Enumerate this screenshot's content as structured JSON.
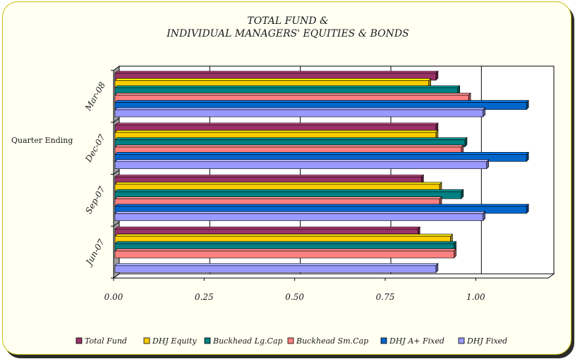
{
  "chart_data": {
    "type": "bar",
    "orientation": "horizontal",
    "title": "TOTAL FUND &",
    "subtitle": "INDIVIDUAL MANAGERS' EQUITIES & BONDS",
    "ylabel": "Quarter Ending",
    "xlabel": "",
    "xlim": [
      0,
      1.2
    ],
    "xticks": [
      "0.00",
      "0.25",
      "0.50",
      "0.75",
      "1.00"
    ],
    "xtick_values": [
      0,
      0.25,
      0.5,
      0.75,
      1.0
    ],
    "grid": "vertical",
    "legend_position": "bottom",
    "categories": [
      "Mar-08",
      "Dec-07",
      "Sep-07",
      "Jun-07"
    ],
    "series": [
      {
        "name": "Total Fund",
        "color": "#993366",
        "values": [
          0.89,
          0.89,
          0.85,
          0.84
        ]
      },
      {
        "name": "DHJ Equity",
        "color": "#ffcc00",
        "values": [
          0.87,
          0.89,
          0.9,
          0.93
        ]
      },
      {
        "name": "Buckhead Lg.Cap",
        "color": "#008080",
        "values": [
          0.95,
          0.97,
          0.96,
          0.94
        ]
      },
      {
        "name": "Buckhead Sm.Cap",
        "color": "#ff8080",
        "values": [
          0.98,
          0.96,
          0.9,
          0.94
        ]
      },
      {
        "name": "DHJ A+ Fixed",
        "color": "#0066cc",
        "values": [
          1.14,
          1.14,
          1.14,
          null
        ]
      },
      {
        "name": "DHJ Fixed",
        "color": "#9999ff",
        "values": [
          1.02,
          1.03,
          1.02,
          0.89
        ]
      }
    ]
  }
}
